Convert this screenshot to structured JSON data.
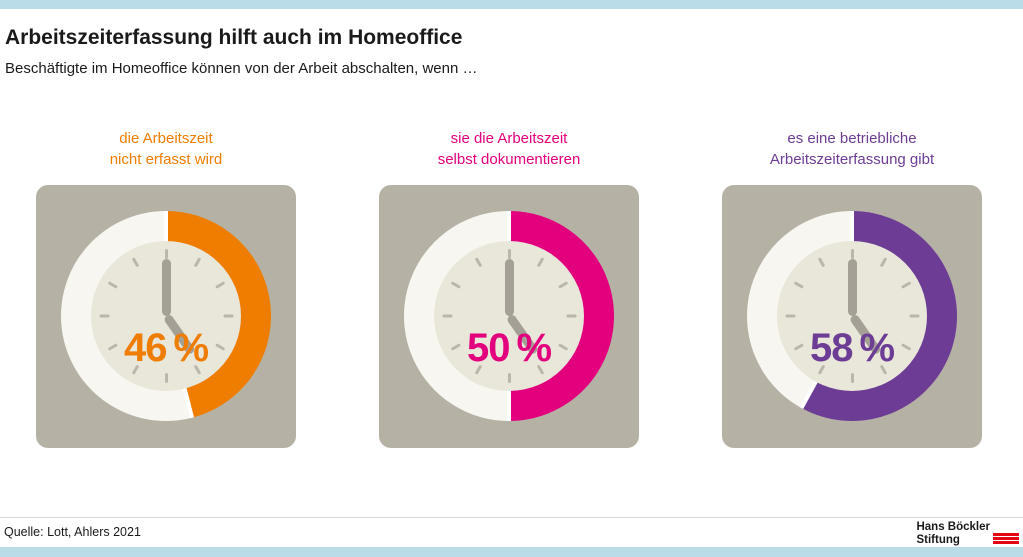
{
  "page": {
    "logo": {
      "line1": "Hans Böckler",
      "line2": "Stiftung"
    }
  },
  "colors": {
    "band": "#badce8",
    "tile": "#b5b1a5",
    "face": "#e9e6da",
    "ring": "#f7f6f0",
    "hand": "#a5a095",
    "tick": "#bab6a9",
    "red": "#e30613",
    "ink": "#1a1a1a",
    "rule": "#d8d8d8"
  },
  "chart_data": {
    "type": "pie",
    "variant": "three donut gauges styled as clocks, fill starts at 12 o'clock going clockwise",
    "title": "Arbeitszeiterfassung hilft auch im Homeoffice",
    "subtitle": "Beschäftigte im Homeoffice können von der Arbeit abschalten, wenn …",
    "unit": "%",
    "items": [
      {
        "label": [
          "die Arbeitszeit",
          "nicht erfasst wird"
        ],
        "value": 46,
        "display": "46 %",
        "color": "#ef7d00"
      },
      {
        "label": [
          "sie die Arbeitszeit",
          "selbst dokumentieren"
        ],
        "value": 50,
        "display": "50 %",
        "color": "#e2007d"
      },
      {
        "label": [
          "es eine betriebliche",
          "Arbeitszeiterfassung gibt"
        ],
        "value": 58,
        "display": "58 %",
        "color": "#6d3d95"
      }
    ],
    "source": "Quelle: Lott, Ahlers 2021"
  }
}
